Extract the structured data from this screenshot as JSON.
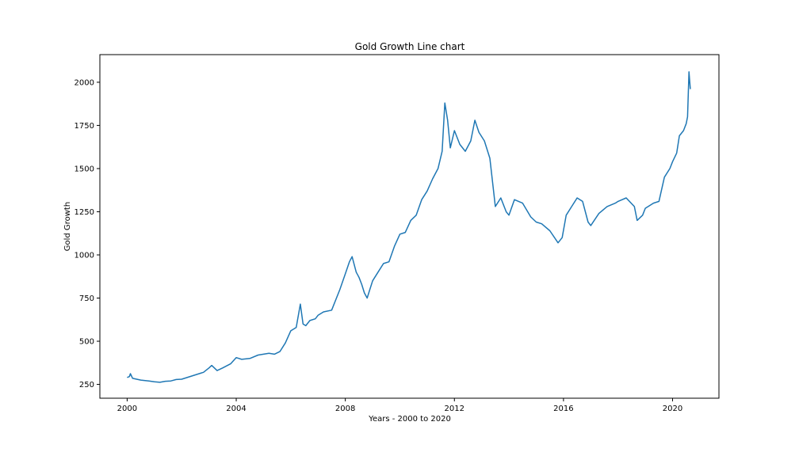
{
  "chart_data": {
    "type": "line",
    "title": "Gold Growth Line chart",
    "xlabel": "Years - 2000 to 2020",
    "ylabel": "Gold Growth",
    "xlim": [
      1999.0,
      2021.7
    ],
    "ylim": [
      170,
      2160
    ],
    "x_ticks": [
      2000,
      2004,
      2008,
      2012,
      2016,
      2020
    ],
    "x_tick_labels": [
      "2000",
      "2004",
      "2008",
      "2012",
      "2016",
      "2020"
    ],
    "y_ticks": [
      250,
      500,
      750,
      1000,
      1250,
      1500,
      1750,
      2000
    ],
    "y_tick_labels": [
      "250",
      "500",
      "750",
      "1000",
      "1250",
      "1500",
      "1750",
      "2000"
    ],
    "grid": false,
    "legend": "none",
    "line_color": "#1f77b4",
    "series": [
      {
        "x": [
          2000.0,
          2000.08,
          2000.12,
          2000.2,
          2000.5,
          2000.8,
          2001.0,
          2001.2,
          2001.4,
          2001.6,
          2001.8,
          2002.0,
          2002.4,
          2002.8,
          2003.0,
          2003.1,
          2003.3,
          2003.5,
          2003.8,
          2004.0,
          2004.2,
          2004.5,
          2004.8,
          2005.0,
          2005.2,
          2005.4,
          2005.6,
          2005.8,
          2006.0,
          2006.2,
          2006.35,
          2006.45,
          2006.55,
          2006.7,
          2006.9,
          2007.0,
          2007.2,
          2007.5,
          2007.8,
          2008.0,
          2008.15,
          2008.25,
          2008.4,
          2008.5,
          2008.6,
          2008.7,
          2008.8,
          2008.9,
          2009.0,
          2009.2,
          2009.4,
          2009.6,
          2009.8,
          2010.0,
          2010.2,
          2010.4,
          2010.6,
          2010.8,
          2011.0,
          2011.2,
          2011.4,
          2011.55,
          2011.65,
          2011.75,
          2011.85,
          2012.0,
          2012.2,
          2012.4,
          2012.6,
          2012.75,
          2012.9,
          2013.1,
          2013.3,
          2013.5,
          2013.7,
          2013.9,
          2014.0,
          2014.2,
          2014.5,
          2014.8,
          2015.0,
          2015.2,
          2015.5,
          2015.8,
          2015.95,
          2016.1,
          2016.3,
          2016.5,
          2016.7,
          2016.9,
          2017.0,
          2017.3,
          2017.6,
          2017.9,
          2018.0,
          2018.3,
          2018.6,
          2018.7,
          2018.9,
          2019.0,
          2019.3,
          2019.5,
          2019.7,
          2019.9,
          2020.0,
          2020.15,
          2020.25,
          2020.4,
          2020.5,
          2020.55,
          2020.6,
          2020.65
        ],
        "values": [
          290,
          295,
          312,
          285,
          275,
          270,
          265,
          262,
          268,
          270,
          278,
          280,
          300,
          320,
          345,
          360,
          330,
          345,
          370,
          405,
          395,
          400,
          420,
          425,
          430,
          425,
          440,
          490,
          560,
          580,
          715,
          600,
          590,
          620,
          630,
          650,
          670,
          680,
          800,
          890,
          960,
          990,
          900,
          870,
          830,
          780,
          750,
          800,
          850,
          900,
          950,
          960,
          1050,
          1120,
          1130,
          1200,
          1230,
          1320,
          1370,
          1440,
          1500,
          1600,
          1880,
          1780,
          1620,
          1720,
          1640,
          1600,
          1660,
          1780,
          1710,
          1660,
          1560,
          1280,
          1330,
          1250,
          1230,
          1320,
          1300,
          1220,
          1190,
          1180,
          1140,
          1070,
          1100,
          1230,
          1280,
          1330,
          1310,
          1190,
          1170,
          1240,
          1280,
          1300,
          1310,
          1330,
          1280,
          1200,
          1230,
          1270,
          1300,
          1310,
          1450,
          1500,
          1540,
          1590,
          1690,
          1720,
          1760,
          1800,
          2060,
          1960
        ]
      }
    ]
  }
}
